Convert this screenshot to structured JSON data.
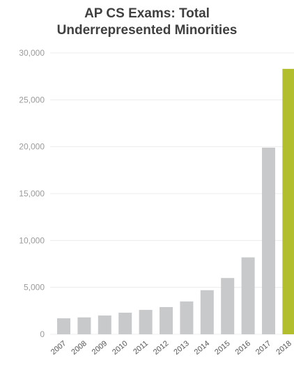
{
  "chart_data": {
    "type": "bar",
    "title": [
      "AP CS Exams: Total",
      "Underrepresented Minorities"
    ],
    "xlabel": "",
    "ylabel": "",
    "categories": [
      "2007",
      "2008",
      "2009",
      "2010",
      "2011",
      "2012",
      "2013",
      "2014",
      "2015",
      "2016",
      "2017",
      "2018"
    ],
    "values": [
      1700,
      1800,
      2000,
      2300,
      2600,
      2900,
      3500,
      4700,
      6000,
      8200,
      19900,
      28300
    ],
    "ylim": [
      0,
      30000
    ],
    "yticks": [
      "0",
      "5,000",
      "10,000",
      "15,000",
      "20,000",
      "25,000",
      "30,000"
    ],
    "grid": true,
    "colors": {
      "default_bar": "#c7c9cb",
      "highlight_bar": "#b3be2f",
      "gridline": "#ececec",
      "title": "#3f3f3f"
    },
    "highlight_category": "2018"
  }
}
